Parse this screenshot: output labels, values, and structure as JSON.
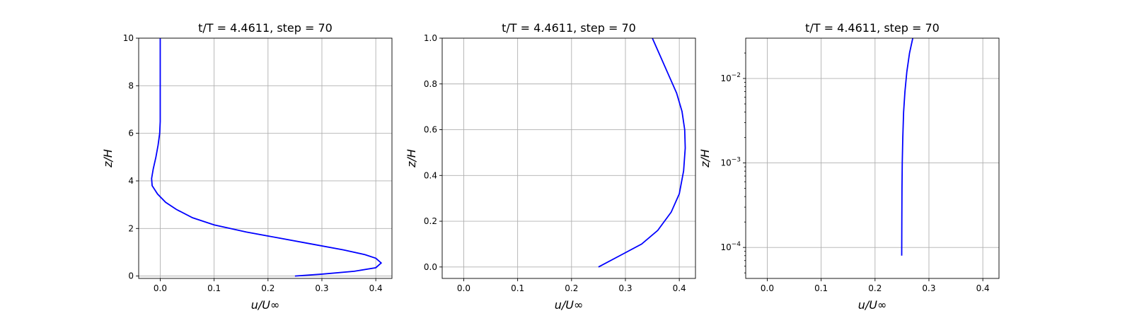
{
  "chart_data": [
    {
      "type": "line",
      "title": "t/T = 4.4611, step = 70",
      "xlabel": "u/U∞",
      "ylabel": "z/H",
      "xlim": [
        -0.04,
        0.43
      ],
      "ylim": [
        -0.1,
        10
      ],
      "yscale": "linear",
      "grid": true,
      "x_ticks": [
        0.0,
        0.1,
        0.2,
        0.3,
        0.4
      ],
      "x_tick_labels": [
        "0.0",
        "0.1",
        "0.2",
        "0.3",
        "0.4"
      ],
      "y_ticks": [
        0,
        2,
        4,
        6,
        8,
        10
      ],
      "y_tick_labels": [
        "0",
        "2",
        "4",
        "6",
        "8",
        "10"
      ],
      "series": [
        {
          "color": "#0000ff",
          "x": [
            0.25,
            0.3,
            0.36,
            0.4,
            0.41,
            0.4,
            0.38,
            0.34,
            0.28,
            0.22,
            0.16,
            0.1,
            0.06,
            0.03,
            0.01,
            -0.005,
            -0.015,
            -0.016,
            -0.013,
            -0.008,
            -0.004,
            -0.001,
            0.0,
            0.0,
            0.0,
            0.0
          ],
          "y": [
            0.0,
            0.08,
            0.2,
            0.35,
            0.55,
            0.75,
            0.9,
            1.1,
            1.35,
            1.6,
            1.85,
            2.15,
            2.45,
            2.8,
            3.1,
            3.45,
            3.8,
            4.1,
            4.5,
            5.0,
            5.5,
            6.0,
            6.5,
            7.5,
            8.5,
            10.0
          ]
        }
      ]
    },
    {
      "type": "line",
      "title": "t/T = 4.4611, step = 70",
      "xlabel": "u/U∞",
      "ylabel": "z/H",
      "xlim": [
        -0.04,
        0.43
      ],
      "ylim": [
        -0.05,
        1.0
      ],
      "yscale": "linear",
      "grid": true,
      "x_ticks": [
        0.0,
        0.1,
        0.2,
        0.3,
        0.4
      ],
      "x_tick_labels": [
        "0.0",
        "0.1",
        "0.2",
        "0.3",
        "0.4"
      ],
      "y_ticks": [
        0.0,
        0.2,
        0.4,
        0.6,
        0.8,
        1.0
      ],
      "y_tick_labels": [
        "0.0",
        "0.2",
        "0.4",
        "0.6",
        "0.8",
        "1.0"
      ],
      "series": [
        {
          "color": "#0000ff",
          "x": [
            0.25,
            0.29,
            0.33,
            0.36,
            0.385,
            0.4,
            0.408,
            0.411,
            0.41,
            0.405,
            0.395,
            0.38,
            0.365,
            0.35
          ],
          "y": [
            0.0,
            0.05,
            0.1,
            0.16,
            0.24,
            0.32,
            0.42,
            0.52,
            0.6,
            0.68,
            0.76,
            0.84,
            0.92,
            1.0
          ]
        }
      ]
    },
    {
      "type": "line",
      "title": "t/T = 4.4611, step = 70",
      "xlabel": "u/U∞",
      "ylabel": "z/H",
      "xlim": [
        -0.04,
        0.43
      ],
      "ylim": [
        4.3e-05,
        0.03
      ],
      "yscale": "log",
      "grid": true,
      "x_ticks": [
        0.0,
        0.1,
        0.2,
        0.3,
        0.4
      ],
      "x_tick_labels": [
        "0.0",
        "0.1",
        "0.2",
        "0.3",
        "0.4"
      ],
      "y_major_ticks": [
        0.0001,
        0.001,
        0.01
      ],
      "y_tick_labels": [
        {
          "base": "10",
          "exp": "−4"
        },
        {
          "base": "10",
          "exp": "−3"
        },
        {
          "base": "10",
          "exp": "−2"
        }
      ],
      "series": [
        {
          "color": "#0000ff",
          "x": [
            0.2495,
            0.2497,
            0.25,
            0.2505,
            0.2515,
            0.253,
            0.2555,
            0.259,
            0.264,
            0.27
          ],
          "y": [
            8e-05,
            0.0002,
            0.0005,
            0.001,
            0.002,
            0.004,
            0.007,
            0.012,
            0.02,
            0.03
          ]
        }
      ]
    }
  ]
}
